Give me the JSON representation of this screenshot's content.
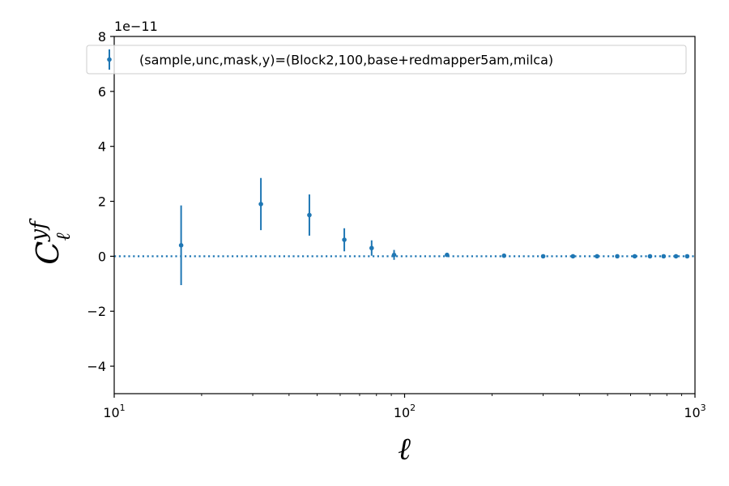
{
  "chart_data": {
    "type": "scatter",
    "series": [
      {
        "name": "(sample,unc,mask,y)=(Block2,100,base+redmapper5am,milca)",
        "color": "#1f77b4",
        "x": [
          17,
          32,
          47,
          62,
          77,
          92,
          140,
          220,
          300,
          380,
          460,
          540,
          620,
          700,
          780,
          860,
          940
        ],
        "y": [
          0.4,
          1.9,
          1.5,
          0.6,
          0.3,
          0.05,
          0.05,
          0.02,
          0.0,
          0.0,
          0.0,
          0.0,
          0.0,
          0.0,
          0.0,
          0.0,
          0.0
        ],
        "yerr": [
          1.45,
          0.95,
          0.75,
          0.42,
          0.28,
          0.18,
          0.02,
          0.02,
          0.01,
          0.01,
          0.01,
          0.01,
          0.01,
          0.01,
          0.01,
          0.01,
          0.01
        ],
        "marker": "point",
        "errorbars": true
      }
    ],
    "reference_line": {
      "y": 0,
      "style": "dotted",
      "color": "#1f77b4"
    },
    "x_scale": "log",
    "xlim": [
      10,
      1000
    ],
    "ylim": [
      -5,
      8
    ],
    "x_ticks": [
      {
        "value": 10,
        "base": "10",
        "exp": "1"
      },
      {
        "value": 100,
        "base": "10",
        "exp": "2"
      },
      {
        "value": 1000,
        "base": "10",
        "exp": "3"
      }
    ],
    "y_ticks": [
      -4,
      -2,
      0,
      2,
      4,
      6,
      8
    ],
    "y_tick_labels": [
      "−4",
      "−2",
      "0",
      "2",
      "4",
      "6",
      "8"
    ],
    "y_offset_text": "1e−11",
    "xlabel": "ℓ",
    "ylabel": "C",
    "ylabel_superscript": "yf",
    "ylabel_subscript": "ℓ",
    "legend_position": "top",
    "grid": false
  }
}
